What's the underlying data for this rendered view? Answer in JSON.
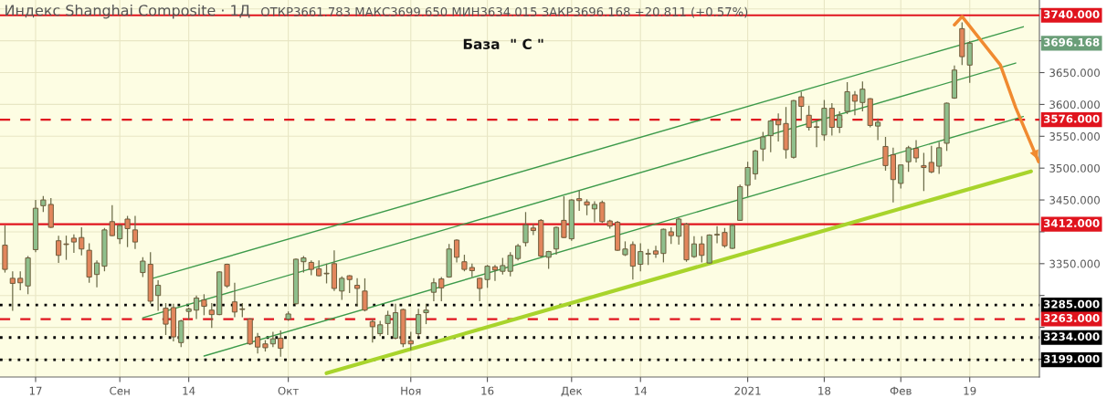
{
  "chart_data": {
    "type": "candlestick",
    "title": "Индекс Shanghai Composite · 1Д",
    "subtitle": "ОТКР3661.783 МАКС3699.650 МИН3634.015 ЗАКР3696.168 +20.811 (+0.57%)",
    "annotations": [
      "База  \" С \"",
      "3696.168"
    ],
    "categories": [
      null,
      null,
      null,
      null,
      "17",
      null,
      null,
      null,
      null,
      null,
      null,
      null,
      null,
      null,
      null,
      "Сен",
      null,
      null,
      null,
      null,
      null,
      null,
      null,
      null,
      "14",
      null,
      null,
      null,
      null,
      null,
      null,
      null,
      null,
      null,
      null,
      null,
      null,
      "Окт",
      null,
      null,
      null,
      null,
      null,
      null,
      null,
      null,
      null,
      null,
      null,
      null,
      null,
      null,
      null,
      "Ноя",
      null,
      null,
      null,
      null,
      null,
      null,
      null,
      null,
      null,
      "16",
      null,
      null,
      null,
      null,
      null,
      null,
      null,
      null,
      null,
      null,
      "Дек",
      null,
      null,
      null,
      null,
      null,
      null,
      null,
      null,
      "14",
      null,
      null,
      null,
      null,
      null,
      null,
      null,
      null,
      null,
      null,
      null,
      null,
      null,
      "2021",
      null,
      null,
      null,
      null,
      null,
      null,
      null,
      null,
      null,
      "18",
      null,
      null,
      null,
      null,
      null,
      null,
      null,
      null,
      null,
      "Фев",
      null,
      null,
      null,
      null,
      null,
      null,
      null,
      null,
      "19",
      null,
      null,
      null,
      null,
      null,
      null,
      null,
      null,
      null
    ],
    "series": [
      {
        "ohlc": [
          [
            3379,
            3410,
            3336,
            3341
          ],
          [
            3327,
            3338,
            3276,
            3319
          ],
          [
            3327,
            3338,
            3308,
            3320
          ],
          [
            3315,
            3362,
            3302,
            3359
          ],
          [
            3372,
            3450,
            3368,
            3437
          ],
          [
            3441,
            3456,
            3431,
            3450
          ],
          [
            3443,
            3453,
            3406,
            3407
          ],
          [
            3386,
            3394,
            3351,
            3363
          ],
          [
            3381,
            3394,
            3356,
            3380
          ],
          [
            3390,
            3396,
            3367,
            3384
          ],
          [
            3391,
            3407,
            3363,
            3373
          ],
          [
            3371,
            3382,
            3320,
            3329
          ],
          [
            3333,
            3355,
            3313,
            3351
          ],
          [
            3346,
            3406,
            3338,
            3403
          ],
          [
            3416,
            3442,
            3393,
            3394
          ],
          [
            3389,
            3412,
            3381,
            3410
          ],
          [
            3420,
            3425,
            3376,
            3405
          ],
          [
            3403,
            3425,
            3373,
            3384
          ],
          [
            3336,
            3360,
            3329,
            3354
          ],
          [
            3349,
            3368,
            3287,
            3291
          ],
          [
            3300,
            3324,
            3276,
            3316
          ],
          [
            3280,
            3288,
            3238,
            3255
          ],
          [
            3281,
            3287,
            3228,
            3235
          ],
          [
            3226,
            3262,
            3219,
            3260
          ],
          [
            3275,
            3281,
            3262,
            3279
          ],
          [
            3277,
            3300,
            3263,
            3296
          ],
          [
            3293,
            3302,
            3269,
            3283
          ],
          [
            3277,
            3288,
            3249,
            3270
          ],
          [
            3270,
            3338,
            3269,
            3337
          ],
          [
            3349,
            3350,
            3312,
            3315
          ],
          [
            3290,
            3320,
            3266,
            3274
          ],
          [
            3278,
            3288,
            3266,
            3279
          ],
          [
            3263,
            3264,
            3222,
            3224
          ],
          [
            3235,
            3241,
            3209,
            3219
          ],
          [
            3224,
            3230,
            3212,
            3218
          ],
          [
            3224,
            3243,
            3219,
            3232
          ],
          [
            3233,
            3245,
            3204,
            3217
          ],
          [
            3263,
            3275,
            3260,
            3271
          ],
          [
            3287,
            3358,
            3286,
            3357
          ],
          [
            3353,
            3362,
            3336,
            3359
          ],
          [
            3352,
            3355,
            3332,
            3341
          ],
          [
            3342,
            3355,
            3330,
            3331
          ],
          [
            3334,
            3350,
            3319,
            3335
          ],
          [
            3350,
            3371,
            3307,
            3311
          ],
          [
            3307,
            3330,
            3293,
            3327
          ],
          [
            3331,
            3332,
            3304,
            3325
          ],
          [
            3316,
            3327,
            3283,
            3311
          ],
          [
            3307,
            3327,
            3275,
            3277
          ],
          [
            3259,
            3263,
            3226,
            3251
          ],
          [
            3240,
            3260,
            3236,
            3254
          ],
          [
            3256,
            3276,
            3238,
            3269
          ],
          [
            3233,
            3287,
            3231,
            3273
          ],
          [
            3278,
            3279,
            3219,
            3224
          ],
          [
            3229,
            3243,
            3214,
            3224
          ],
          [
            3240,
            3279,
            3236,
            3270
          ],
          [
            3273,
            3287,
            3255,
            3277
          ],
          [
            3305,
            3327,
            3291,
            3320
          ],
          [
            3326,
            3329,
            3291,
            3312
          ],
          [
            3329,
            3381,
            3328,
            3373
          ],
          [
            3387,
            3388,
            3352,
            3360
          ],
          [
            3353,
            3364,
            3338,
            3341
          ],
          [
            3344,
            3350,
            3329,
            3339
          ],
          [
            3327,
            3328,
            3291,
            3311
          ],
          [
            3325,
            3348,
            3312,
            3346
          ],
          [
            3345,
            3348,
            3323,
            3340
          ],
          [
            3338,
            3359,
            3333,
            3347
          ],
          [
            3338,
            3368,
            3330,
            3363
          ],
          [
            3358,
            3381,
            3355,
            3378
          ],
          [
            3383,
            3431,
            3377,
            3411
          ],
          [
            3406,
            3412,
            3395,
            3402
          ],
          [
            3418,
            3420,
            3360,
            3362
          ],
          [
            3360,
            3370,
            3342,
            3369
          ],
          [
            3373,
            3408,
            3364,
            3407
          ],
          [
            3418,
            3456,
            3390,
            3391
          ],
          [
            3389,
            3451,
            3386,
            3450
          ],
          [
            3452,
            3465,
            3433,
            3449
          ],
          [
            3447,
            3451,
            3426,
            3442
          ],
          [
            3436,
            3448,
            3415,
            3443
          ],
          [
            3446,
            3449,
            3414,
            3416
          ],
          [
            3417,
            3419,
            3405,
            3409
          ],
          [
            3415,
            3417,
            3370,
            3371
          ],
          [
            3364,
            3385,
            3362,
            3373
          ],
          [
            3380,
            3385,
            3325,
            3346
          ],
          [
            3349,
            3382,
            3338,
            3369
          ],
          [
            3365,
            3373,
            3348,
            3366
          ],
          [
            3370,
            3378,
            3359,
            3365
          ],
          [
            3366,
            3405,
            3352,
            3404
          ],
          [
            3400,
            3407,
            3381,
            3394
          ],
          [
            3393,
            3422,
            3380,
            3420
          ],
          [
            3412,
            3414,
            3353,
            3356
          ],
          [
            3361,
            3393,
            3359,
            3381
          ],
          [
            3381,
            3393,
            3352,
            3363
          ],
          [
            3351,
            3396,
            3350,
            3395
          ],
          [
            3395,
            3409,
            3382,
            3396
          ],
          [
            3399,
            3406,
            3375,
            3378
          ],
          [
            3374,
            3412,
            3373,
            3410
          ],
          [
            3418,
            3474,
            3417,
            3471
          ],
          [
            3473,
            3510,
            3455,
            3501
          ],
          [
            3491,
            3529,
            3482,
            3527
          ],
          [
            3530,
            3557,
            3511,
            3549
          ],
          [
            3551,
            3576,
            3525,
            3574
          ],
          [
            3575,
            3586,
            3542,
            3568
          ],
          [
            3570,
            3596,
            3515,
            3529
          ],
          [
            3517,
            3607,
            3515,
            3606
          ],
          [
            3612,
            3620,
            3576,
            3597
          ],
          [
            3583,
            3598,
            3559,
            3564
          ],
          [
            3564,
            3574,
            3533,
            3565
          ],
          [
            3552,
            3607,
            3543,
            3594
          ],
          [
            3594,
            3602,
            3551,
            3564
          ],
          [
            3564,
            3589,
            3555,
            3583
          ],
          [
            3589,
            3635,
            3585,
            3620
          ],
          [
            3615,
            3621,
            3583,
            3605
          ],
          [
            3603,
            3636,
            3589,
            3624
          ],
          [
            3609,
            3610,
            3564,
            3567
          ],
          [
            3566,
            3578,
            3544,
            3572
          ],
          [
            3534,
            3549,
            3496,
            3504
          ],
          [
            3521,
            3532,
            3446,
            3482
          ],
          [
            3476,
            3505,
            3468,
            3505
          ],
          [
            3510,
            3535,
            3494,
            3532
          ],
          [
            3531,
            3544,
            3509,
            3516
          ],
          [
            3504,
            3524,
            3464,
            3501
          ],
          [
            3509,
            3535,
            3492,
            3494
          ],
          [
            3503,
            3541,
            3491,
            3532
          ],
          [
            3539,
            3603,
            3527,
            3602
          ],
          [
            3610,
            3661,
            3609,
            3654
          ],
          [
            3719,
            3729,
            3662,
            3675
          ],
          [
            3661.783,
            3699.65,
            3634.015,
            3696.168
          ],
          null,
          null,
          null,
          null,
          null,
          null,
          null,
          null,
          null
        ],
        "colors": [
          "#e2865c",
          "#e2865c",
          "#e2865c",
          "#8fbf8c",
          "#8fbf8c",
          "#8fbf8c",
          "#e2865c",
          "#e2865c",
          "#e2865c",
          "#e2865c",
          "#e2865c",
          "#e2865c",
          "#8fbf8c",
          "#8fbf8c",
          "#e2865c",
          "#8fbf8c",
          "#e2865c",
          "#e2865c",
          "#8fbf8c",
          "#e2865c",
          "#8fbf8c",
          "#e2865c",
          "#e2865c",
          "#8fbf8c",
          "#8fbf8c",
          "#8fbf8c",
          "#e2865c",
          "#e2865c",
          "#8fbf8c",
          "#e2865c",
          "#e2865c",
          "#8fbf8c",
          "#e2865c",
          "#e2865c",
          "#e2865c",
          "#8fbf8c",
          "#e2865c",
          "#8fbf8c",
          "#8fbf8c",
          "#8fbf8c",
          "#e2865c",
          "#e2865c",
          "#8fbf8c",
          "#e2865c",
          "#8fbf8c",
          "#e2865c",
          "#e2865c",
          "#e2865c",
          "#e2865c",
          "#8fbf8c",
          "#8fbf8c",
          "#8fbf8c",
          "#e2865c",
          "#e2865c",
          "#8fbf8c",
          "#8fbf8c",
          "#8fbf8c",
          "#e2865c",
          "#8fbf8c",
          "#e2865c",
          "#e2865c",
          "#e2865c",
          "#e2865c",
          "#8fbf8c",
          "#e2865c",
          "#8fbf8c",
          "#8fbf8c",
          "#8fbf8c",
          "#8fbf8c",
          "#e2865c",
          "#e2865c",
          "#8fbf8c",
          "#8fbf8c",
          "#e2865c",
          "#8fbf8c",
          "#e2865c",
          "#e2865c",
          "#8fbf8c",
          "#e2865c",
          "#e2865c",
          "#e2865c",
          "#8fbf8c",
          "#e2865c",
          "#8fbf8c",
          "#8fbf8c",
          "#e2865c",
          "#8fbf8c",
          "#e2865c",
          "#8fbf8c",
          "#e2865c",
          "#8fbf8c",
          "#e2865c",
          "#8fbf8c",
          "#8fbf8c",
          "#e2865c",
          "#8fbf8c",
          "#8fbf8c",
          "#8fbf8c",
          "#8fbf8c",
          "#8fbf8c",
          "#8fbf8c",
          "#e2865c",
          "#e2865c",
          "#8fbf8c",
          "#e2865c",
          "#e2865c",
          "#8fbf8c",
          "#8fbf8c",
          "#e2865c",
          "#8fbf8c",
          "#8fbf8c",
          "#e2865c",
          "#8fbf8c",
          "#e2865c",
          "#8fbf8c",
          "#e2865c",
          "#e2865c",
          "#8fbf8c",
          "#8fbf8c",
          "#e2865c",
          "#e2865c",
          "#e2865c",
          "#8fbf8c",
          "#8fbf8c",
          "#8fbf8c",
          "#e2865c",
          "#8fbf8c",
          null,
          null,
          null,
          null,
          null,
          null,
          null,
          null,
          null
        ]
      },
      {
        "type": "line",
        "color": "#3c9a4a",
        "values": [
          null,
          null,
          null,
          null,
          null,
          null,
          null,
          null,
          null,
          null,
          null,
          null,
          null,
          null,
          null,
          null,
          null,
          null,
          null,
          3326,
          null,
          null,
          null,
          null,
          null,
          null,
          null,
          null,
          null,
          null,
          null,
          null,
          null,
          null,
          null,
          null,
          null,
          null,
          null,
          null,
          null,
          null,
          null,
          null,
          null,
          null,
          null,
          null,
          null,
          null,
          null,
          null,
          null,
          null,
          null,
          null,
          null,
          null,
          null,
          null,
          null,
          null,
          null,
          null,
          null,
          null,
          null,
          null,
          null,
          null,
          null,
          null,
          null,
          null,
          null,
          null,
          null,
          null,
          null,
          null,
          null,
          null,
          null,
          null,
          null,
          null,
          null,
          null,
          null,
          null,
          null,
          null,
          null,
          null,
          null,
          null,
          null,
          null,
          null,
          null,
          null,
          null,
          null,
          null,
          null,
          null,
          null,
          null,
          null,
          null,
          null,
          null,
          null,
          null,
          null,
          null,
          null,
          null,
          null,
          null,
          null,
          null,
          null,
          null,
          null,
          null,
          null,
          null,
          null,
          null,
          null,
          null,
          null,
          3722,
          null,
          null
        ]
      },
      {
        "type": "line",
        "color": "#3c9a4a",
        "values": [
          null,
          null,
          null,
          null,
          null,
          null,
          null,
          null,
          null,
          null,
          null,
          null,
          null,
          null,
          null,
          null,
          null,
          null,
          3265,
          null,
          null,
          null,
          null,
          null,
          null,
          null,
          null,
          null,
          null,
          null,
          null,
          null,
          null,
          null,
          null,
          null,
          null,
          null,
          null,
          null,
          null,
          null,
          null,
          null,
          null,
          null,
          null,
          null,
          null,
          null,
          null,
          null,
          null,
          null,
          null,
          null,
          null,
          null,
          null,
          null,
          null,
          null,
          null,
          null,
          null,
          null,
          null,
          null,
          null,
          null,
          null,
          null,
          null,
          null,
          null,
          null,
          null,
          null,
          null,
          null,
          null,
          null,
          null,
          null,
          null,
          null,
          null,
          null,
          null,
          null,
          null,
          null,
          null,
          null,
          null,
          null,
          null,
          null,
          null,
          null,
          null,
          null,
          null,
          null,
          null,
          null,
          null,
          null,
          null,
          null,
          null,
          null,
          null,
          null,
          null,
          null,
          null,
          null,
          null,
          null,
          null,
          null,
          null,
          null,
          null,
          null,
          null,
          null,
          null,
          null,
          null,
          null,
          3665,
          null,
          null,
          null
        ]
      },
      {
        "type": "line",
        "color": "#3c9a4a",
        "values": [
          null,
          null,
          null,
          null,
          null,
          null,
          null,
          null,
          null,
          null,
          null,
          null,
          null,
          null,
          null,
          null,
          null,
          null,
          null,
          null,
          null,
          null,
          null,
          null,
          null,
          null,
          3205,
          null,
          null,
          null,
          null,
          null,
          null,
          null,
          null,
          null,
          null,
          null,
          null,
          null,
          null,
          null,
          null,
          null,
          null,
          null,
          null,
          null,
          null,
          null,
          null,
          null,
          null,
          null,
          null,
          null,
          null,
          null,
          null,
          null,
          null,
          null,
          null,
          null,
          null,
          null,
          null,
          null,
          null,
          null,
          null,
          null,
          null,
          null,
          null,
          null,
          null,
          null,
          null,
          null,
          null,
          null,
          null,
          null,
          null,
          null,
          null,
          null,
          null,
          null,
          null,
          null,
          null,
          null,
          null,
          null,
          null,
          null,
          null,
          null,
          null,
          null,
          null,
          null,
          null,
          null,
          null,
          null,
          null,
          null,
          null,
          null,
          null,
          null,
          null,
          null,
          null,
          null,
          null,
          null,
          null,
          null,
          null,
          null,
          null,
          null,
          null,
          null,
          null,
          null,
          null,
          null,
          null,
          3581,
          null,
          null
        ]
      },
      {
        "type": "line",
        "color": "#a8d42c",
        "values": [
          null,
          null,
          null,
          null,
          null,
          null,
          null,
          null,
          null,
          null,
          null,
          null,
          null,
          null,
          null,
          null,
          null,
          null,
          null,
          null,
          null,
          null,
          null,
          null,
          null,
          null,
          null,
          null,
          null,
          null,
          null,
          null,
          null,
          null,
          null,
          null,
          null,
          null,
          null,
          null,
          null,
          null,
          3178,
          null,
          null,
          null,
          null,
          null,
          null,
          null,
          null,
          null,
          null,
          null,
          null,
          null,
          null,
          null,
          null,
          null,
          null,
          null,
          null,
          null,
          null,
          null,
          null,
          null,
          null,
          null,
          null,
          null,
          null,
          null,
          null,
          null,
          null,
          null,
          null,
          null,
          null,
          null,
          null,
          null,
          null,
          null,
          null,
          null,
          null,
          null,
          null,
          null,
          null,
          null,
          null,
          null,
          null,
          null,
          null,
          null,
          null,
          null,
          null,
          null,
          null,
          null,
          null,
          null,
          null,
          null,
          null,
          null,
          null,
          null,
          null,
          null,
          null,
          null,
          null,
          null,
          null,
          null,
          null,
          null,
          null,
          null,
          null,
          null,
          null,
          null,
          null,
          null,
          null,
          null,
          3495,
          null
        ]
      },
      {
        "type": "line",
        "color": "#f08a30",
        "values": [
          null,
          null,
          null,
          null,
          null,
          null,
          null,
          null,
          null,
          null,
          null,
          null,
          null,
          null,
          null,
          null,
          null,
          null,
          null,
          null,
          null,
          null,
          null,
          null,
          null,
          null,
          null,
          null,
          null,
          null,
          null,
          null,
          null,
          null,
          null,
          null,
          null,
          null,
          null,
          null,
          null,
          null,
          null,
          null,
          null,
          null,
          null,
          null,
          null,
          null,
          null,
          null,
          null,
          null,
          null,
          null,
          null,
          null,
          null,
          null,
          null,
          null,
          null,
          null,
          null,
          null,
          null,
          null,
          null,
          null,
          null,
          null,
          null,
          null,
          null,
          null,
          null,
          null,
          null,
          null,
          null,
          null,
          null,
          null,
          null,
          null,
          null,
          null,
          null,
          null,
          null,
          null,
          null,
          null,
          null,
          null,
          null,
          null,
          null,
          null,
          null,
          null,
          null,
          null,
          null,
          null,
          null,
          null,
          null,
          null,
          null,
          null,
          null,
          null,
          null,
          null,
          null,
          null,
          null,
          null,
          null,
          null,
          null,
          null,
          3725,
          3738,
          null,
          null,
          null,
          null,
          3662,
          null,
          3595,
          null,
          null,
          3510
        ]
      }
    ],
    "ref_lines": [
      {
        "axis": "y",
        "value": 3740,
        "label": "3740.000",
        "color": "#e0141e",
        "line_style": "solid"
      },
      {
        "axis": "y",
        "value": 3576,
        "label": "3576.000",
        "color": "#e0141e",
        "line_style": "dashed"
      },
      {
        "axis": "y",
        "value": 3412,
        "label": "3412.000",
        "color": "#e0141e",
        "line_style": "solid"
      },
      {
        "axis": "y",
        "value": 3285,
        "label": "3285.000",
        "color": "#000000",
        "line_style": "dotted"
      },
      {
        "axis": "y",
        "value": 3263,
        "label": "3263.000",
        "color": "#e0141e",
        "line_style": "dashed"
      },
      {
        "axis": "y",
        "value": 3234,
        "label": "3234.000",
        "color": "#000000",
        "line_style": "dotted"
      },
      {
        "axis": "y",
        "value": 3199,
        "label": "3199.000",
        "color": "#000000",
        "line_style": "dotted"
      }
    ],
    "ylim": [
      3172,
      3764
    ],
    "yticks": [
      {
        "value": 3200,
        "label": null
      },
      {
        "value": 3250,
        "label": null
      },
      {
        "value": 3300,
        "label": null
      },
      {
        "value": 3350,
        "label": "3350.000"
      },
      {
        "value": 3400,
        "label": null
      },
      {
        "value": 3450,
        "label": "3450.000"
      },
      {
        "value": 3500,
        "label": "3500.000"
      },
      {
        "value": 3550,
        "label": "3550.000"
      },
      {
        "value": 3600,
        "label": "3600.000"
      },
      {
        "value": 3650,
        "label": "3650.000"
      },
      {
        "value": 3700,
        "label": null
      },
      {
        "value": 3750,
        "label": null
      }
    ],
    "grid": true
  }
}
